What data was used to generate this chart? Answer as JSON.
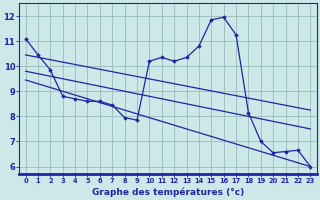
{
  "xlabel": "Graphe des températures (°c)",
  "bg_color": "#cce8e8",
  "line_color": "#2222aa",
  "grid_color": "#99bbbb",
  "x_ticks": [
    0,
    1,
    2,
    3,
    4,
    5,
    6,
    7,
    8,
    9,
    10,
    11,
    12,
    13,
    14,
    15,
    16,
    17,
    18,
    19,
    20,
    21,
    22,
    23
  ],
  "y_ticks": [
    6,
    7,
    8,
    9,
    10,
    11,
    12
  ],
  "xlim": [
    -0.5,
    23.5
  ],
  "ylim": [
    5.7,
    12.5
  ],
  "main_x": [
    0,
    1,
    2,
    3,
    4,
    5,
    6,
    7,
    8,
    9,
    10,
    11,
    12,
    13,
    14,
    15,
    16,
    17,
    18,
    19,
    20,
    21,
    22,
    23
  ],
  "main_y": [
    11.1,
    10.45,
    9.85,
    8.8,
    8.7,
    8.6,
    8.6,
    8.45,
    7.95,
    7.85,
    10.2,
    10.35,
    10.2,
    10.35,
    10.8,
    11.85,
    11.95,
    11.25,
    8.15,
    7.0,
    6.55,
    6.6,
    6.65,
    6.0
  ],
  "line1_x": [
    0,
    23
  ],
  "line1_y": [
    10.45,
    8.25
  ],
  "line2_x": [
    0,
    23
  ],
  "line2_y": [
    9.8,
    7.5
  ],
  "line3_x": [
    0,
    23
  ],
  "line3_y": [
    9.45,
    6.0
  ],
  "axis_label_fontsize": 6.5,
  "tick_fontsize_x": 4.8,
  "tick_fontsize_y": 6.0,
  "xlabel_bold": true
}
